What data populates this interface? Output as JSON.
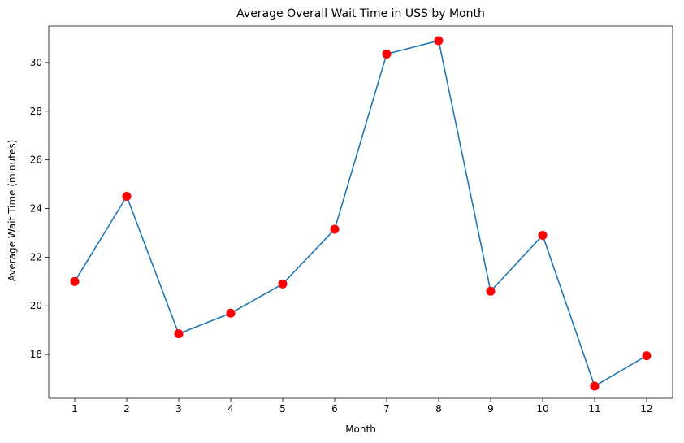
{
  "chart_data": {
    "type": "line",
    "title": "Average Overall Wait Time in USS by Month",
    "xlabel": "Month",
    "ylabel": "Average Wait Time (minutes)",
    "x": [
      1,
      2,
      3,
      4,
      5,
      6,
      7,
      8,
      9,
      10,
      11,
      12
    ],
    "y_ticks": [
      18,
      20,
      22,
      24,
      26,
      28,
      30
    ],
    "xlim": [
      0.5,
      12.5
    ],
    "ylim": [
      16.2,
      31.5
    ],
    "grid": false,
    "legend": "none",
    "series": [
      {
        "values": [
          21.0,
          24.5,
          18.85,
          19.7,
          20.9,
          23.15,
          30.35,
          30.9,
          20.6,
          22.9,
          16.7,
          17.95
        ],
        "line_color": "#1f77b4",
        "marker_color": "#ff0000"
      }
    ]
  }
}
